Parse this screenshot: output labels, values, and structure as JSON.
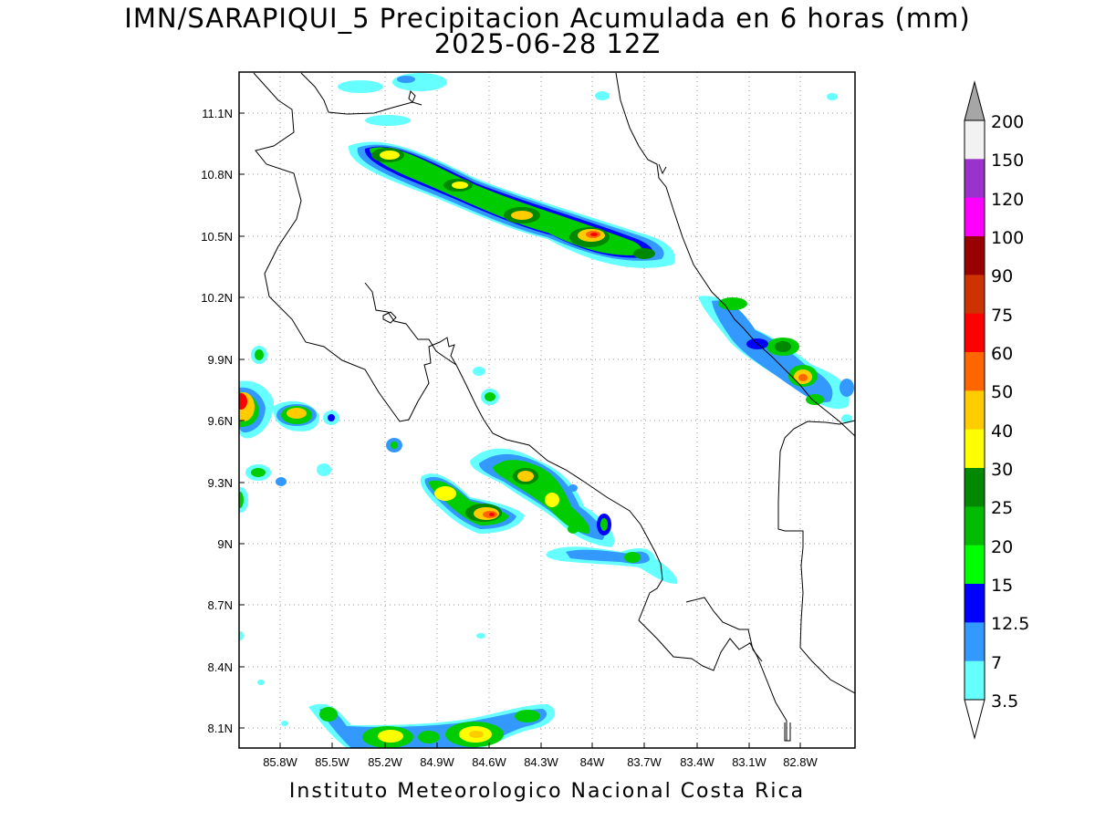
{
  "title_line1": "IMN/SARAPIQUI_5 Precipitacion Acumulada en 6 horas (mm)",
  "title_line2": "2025-06-28 12Z",
  "footer": "Instituto Meteorologico Nacional Costa Rica",
  "map": {
    "lat_labels": [
      "11.1N",
      "10.8N",
      "10.5N",
      "10.2N",
      "9.9N",
      "9.6N",
      "9.3N",
      "9N",
      "8.7N",
      "8.4N",
      "8.1N"
    ],
    "lon_labels": [
      "85.8W",
      "85.5W",
      "85.2W",
      "84.9W",
      "84.6W",
      "84.3W",
      "84W",
      "83.7W",
      "83.4W",
      "83.1W",
      "82.8W"
    ]
  },
  "colorbar": {
    "labels": [
      "200",
      "150",
      "120",
      "100",
      "90",
      "75",
      "60",
      "50",
      "40",
      "30",
      "25",
      "20",
      "15",
      "12.5",
      "7",
      "3.5"
    ],
    "colors": [
      "#f2f2f2",
      "#9933cc",
      "#ff00ff",
      "#990000",
      "#cc3300",
      "#ff0000",
      "#ff6600",
      "#ffcc00",
      "#ffff00",
      "#008800",
      "#00bb00",
      "#00ff00",
      "#0000ff",
      "#3399ff",
      "#66ffff"
    ],
    "over_color": "#a6a6a6",
    "under_color": "#ffffff"
  }
}
